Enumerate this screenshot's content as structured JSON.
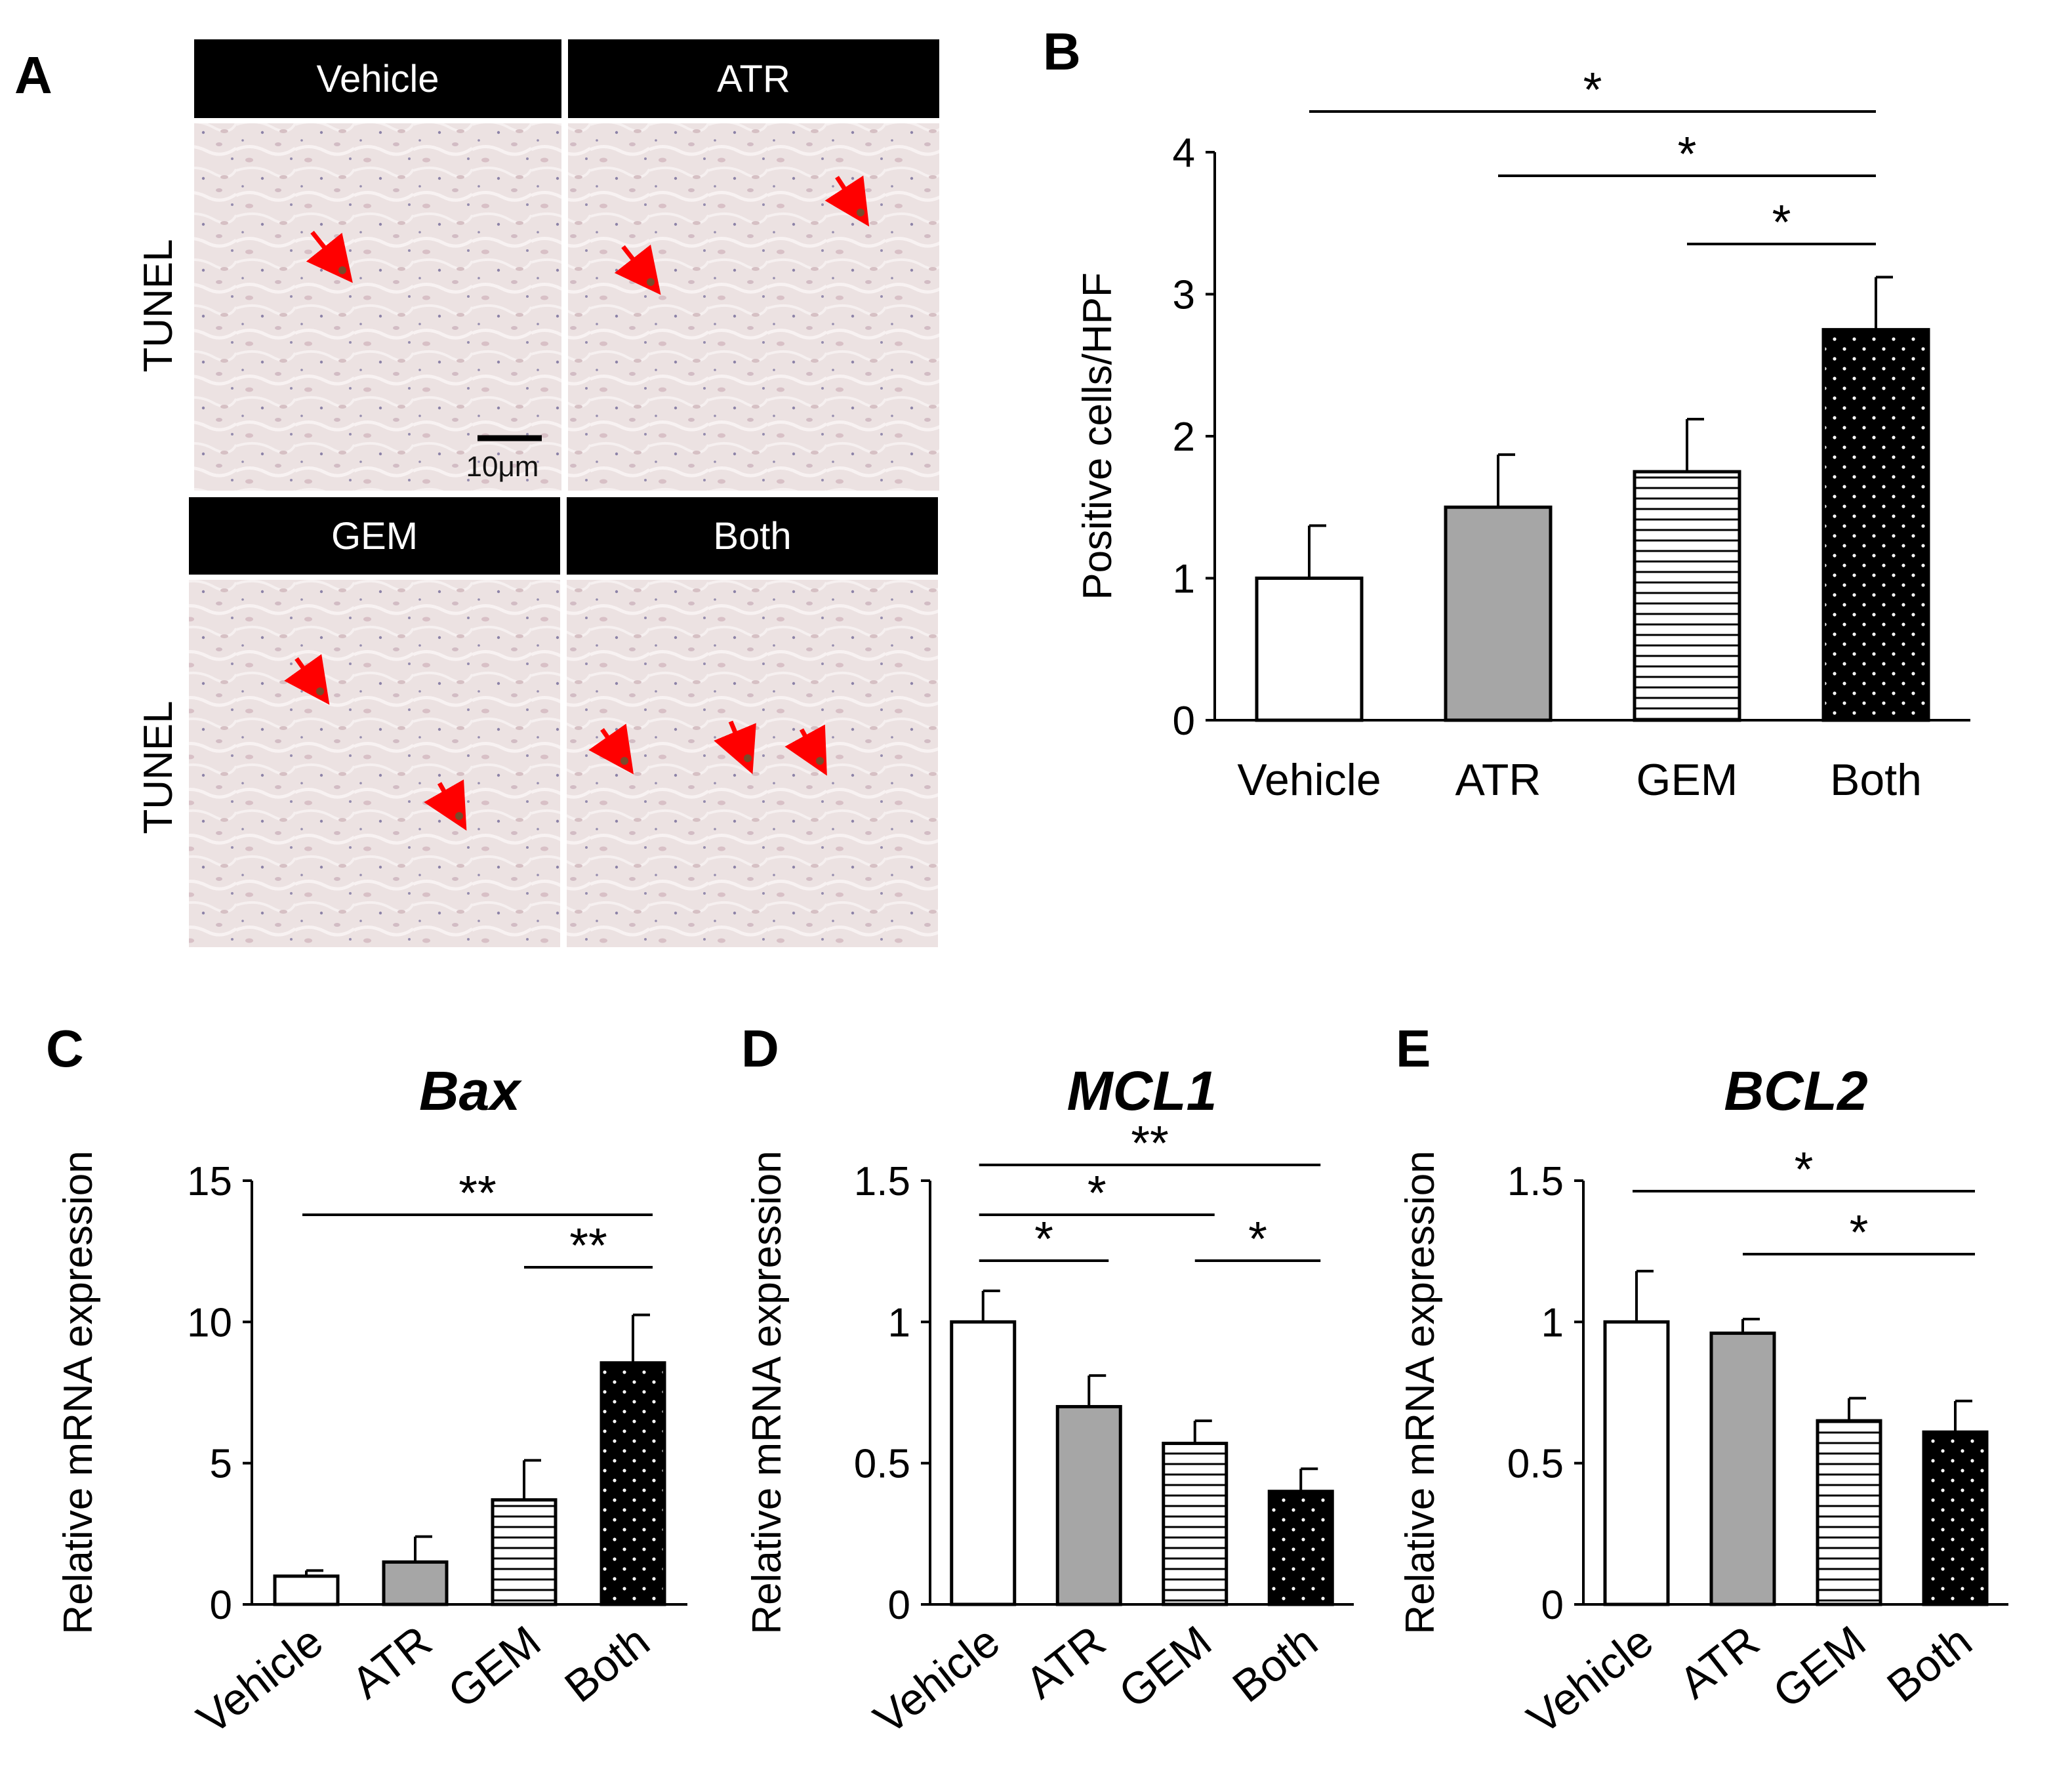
{
  "panel_letters": {
    "a": "A",
    "b": "B",
    "c": "C",
    "d": "D",
    "e": "E"
  },
  "micrographs": {
    "row_label": "TUNEL",
    "scale_bar_label": "10μm",
    "panels": [
      {
        "label": "Vehicle",
        "arrows": 1
      },
      {
        "label": "ATR",
        "arrows": 2
      },
      {
        "label": "GEM",
        "arrows": 2
      },
      {
        "label": "Both",
        "arrows": 3
      }
    ],
    "colors": {
      "header": "#000000",
      "tissue": "#ece2e2",
      "arrow": "#ff0000"
    }
  },
  "chart_data": [
    {
      "id": "B",
      "type": "bar",
      "title": "",
      "ylabel": "Positive cells/HPF",
      "categories": [
        "Vehicle",
        "ATR",
        "GEM",
        "Both"
      ],
      "values": [
        1.0,
        1.5,
        1.75,
        2.75
      ],
      "errors": [
        0.37,
        0.37,
        0.37,
        0.37
      ],
      "ylim": [
        0,
        4
      ],
      "yticks": [
        0,
        1,
        2,
        3,
        4
      ],
      "tick_labels": [
        "0",
        "1",
        "2",
        "3",
        "4"
      ],
      "rotate_categories": false,
      "significance": [
        {
          "from": 0,
          "to": 3,
          "label": "*"
        },
        {
          "from": 1,
          "to": 3,
          "label": "*"
        },
        {
          "from": 2,
          "to": 3,
          "label": "*"
        }
      ]
    },
    {
      "id": "C",
      "type": "bar",
      "title": "Bax",
      "ylabel": "Relative mRNA expression",
      "categories": [
        "Vehicle",
        "ATR",
        "GEM",
        "Both"
      ],
      "values": [
        1.0,
        1.5,
        3.7,
        8.55
      ],
      "errors": [
        0.2,
        0.9,
        1.4,
        1.7
      ],
      "ylim": [
        0,
        15
      ],
      "yticks": [
        0,
        5,
        10,
        15
      ],
      "tick_labels": [
        "0",
        "5",
        "10",
        "15"
      ],
      "rotate_categories": true,
      "significance": [
        {
          "from": 0,
          "to": 3,
          "label": "**"
        },
        {
          "from": 2,
          "to": 3,
          "label": "**"
        }
      ]
    },
    {
      "id": "D",
      "type": "bar",
      "title": "MCL1",
      "ylabel": "Relative mRNA expression",
      "categories": [
        "Vehicle",
        "ATR",
        "GEM",
        "Both"
      ],
      "values": [
        1.0,
        0.7,
        0.57,
        0.4
      ],
      "errors": [
        0.11,
        0.11,
        0.08,
        0.08
      ],
      "ylim": [
        0,
        1.5
      ],
      "yticks": [
        0,
        0.5,
        1,
        1.5
      ],
      "tick_labels": [
        "0",
        "0.5",
        "1",
        "1.5"
      ],
      "rotate_categories": true,
      "significance": [
        {
          "from": 0,
          "to": 3,
          "label": "**"
        },
        {
          "from": 0,
          "to": 2,
          "label": "*"
        },
        {
          "from": 0,
          "to": 1,
          "label": "*"
        },
        {
          "from": 2,
          "to": 3,
          "label": "*"
        }
      ]
    },
    {
      "id": "E",
      "type": "bar",
      "title": "BCL2",
      "ylabel": "Relative mRNA expression",
      "categories": [
        "Vehicle",
        "ATR",
        "GEM",
        "Both"
      ],
      "values": [
        1.0,
        0.96,
        0.65,
        0.61
      ],
      "errors": [
        0.18,
        0.05,
        0.08,
        0.11
      ],
      "ylim": [
        0,
        1.5
      ],
      "yticks": [
        0,
        0.5,
        1,
        1.5
      ],
      "tick_labels": [
        "0",
        "0.5",
        "1",
        "1.5"
      ],
      "rotate_categories": true,
      "significance": [
        {
          "from": 0,
          "to": 3,
          "label": "*"
        },
        {
          "from": 1,
          "to": 3,
          "label": "*"
        }
      ]
    }
  ],
  "bar_styles": [
    {
      "fill": "#ffffff",
      "pattern": "none"
    },
    {
      "fill": "#a6a6a6",
      "pattern": "none"
    },
    {
      "fill": "#ffffff",
      "pattern": "horizontal-lines"
    },
    {
      "fill": "#000000",
      "pattern": "white-dots"
    }
  ]
}
